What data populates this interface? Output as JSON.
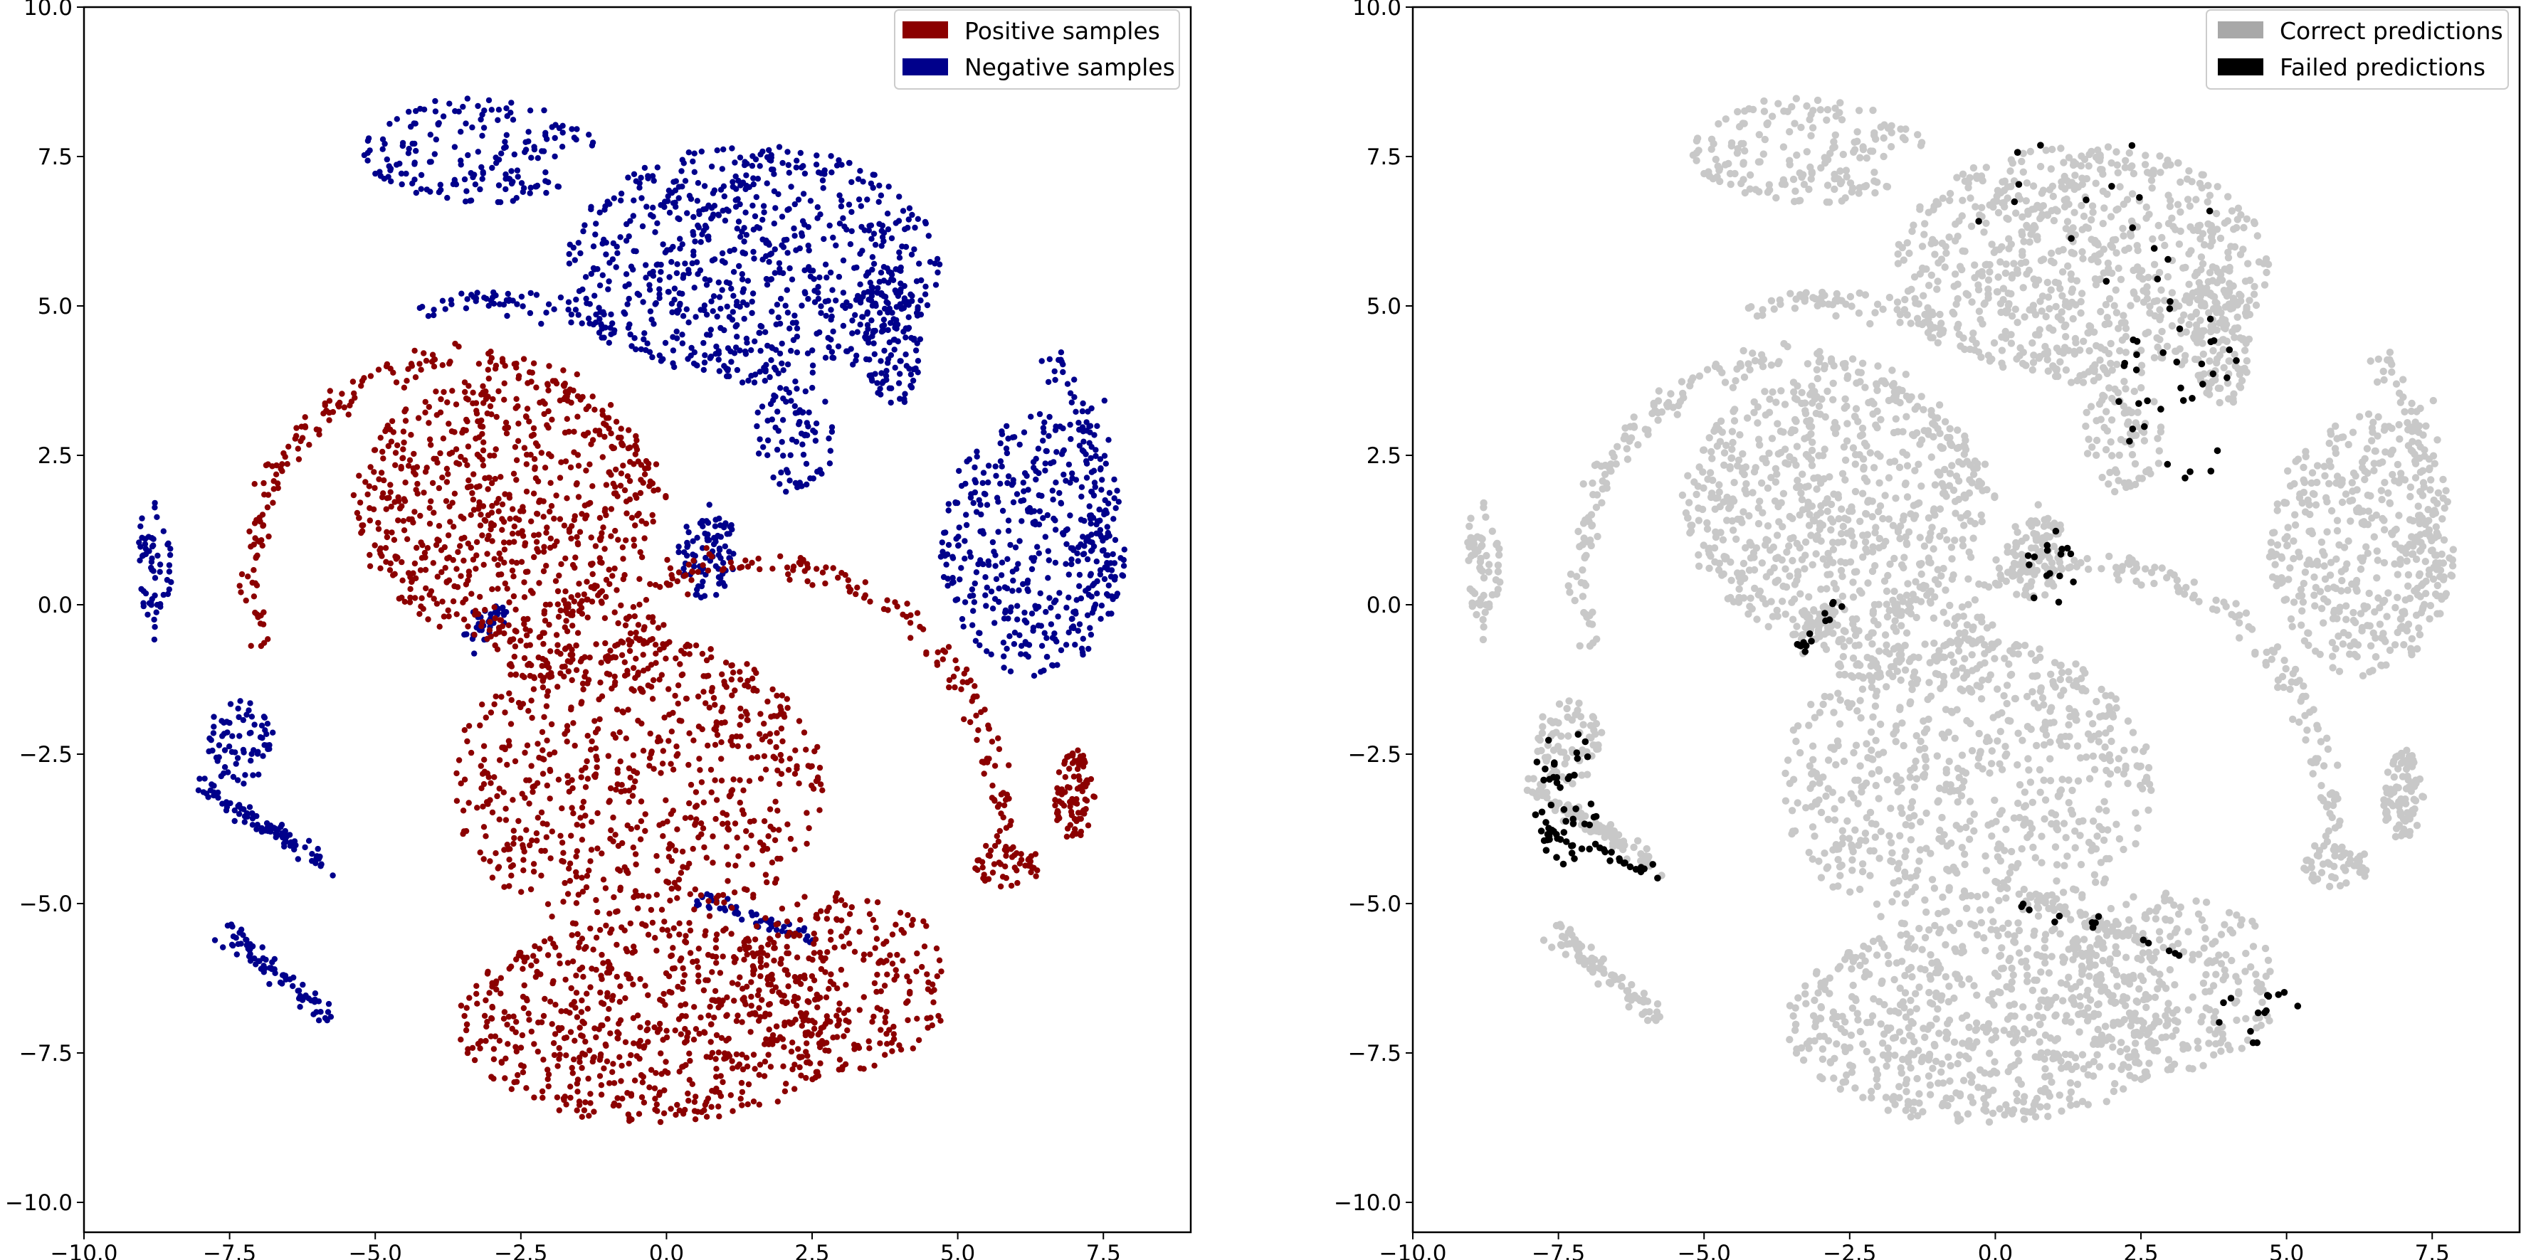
{
  "chart_data": [
    {
      "type": "scatter",
      "panel": "left",
      "xlim": [
        -10.0,
        9.0
      ],
      "ylim": [
        -10.5,
        10.0
      ],
      "xticks": [
        -10.0,
        -7.5,
        -5.0,
        -2.5,
        0.0,
        2.5,
        5.0,
        7.5
      ],
      "xtick_labels": [
        "−10.0",
        "−7.5",
        "−5.0",
        "−2.5",
        "0.0",
        "2.5",
        "5.0",
        "7.5"
      ],
      "yticks": [
        -10.0,
        -7.5,
        -5.0,
        -2.5,
        0.0,
        2.5,
        5.0,
        7.5,
        10.0
      ],
      "ytick_labels": [
        "−10.0",
        "−7.5",
        "−5.0",
        "−2.5",
        "0.0",
        "2.5",
        "5.0",
        "7.5",
        "10.0"
      ],
      "grid": false,
      "legend_position": "top-right",
      "series": [
        {
          "name": "Positive samples",
          "color": "#8b0000",
          "clusters": [
            {
              "cx": -2.8,
              "cy": 1.6,
              "rx": 2.6,
              "ry": 2.2,
              "n": 650
            },
            {
              "cx": -0.5,
              "cy": -3.0,
              "rx": 3.2,
              "ry": 2.5,
              "n": 700
            },
            {
              "cx": -0.2,
              "cy": -7.0,
              "rx": 3.4,
              "ry": 1.7,
              "n": 650
            },
            {
              "cx": 3.0,
              "cy": -6.3,
              "rx": 1.9,
              "ry": 1.5,
              "n": 250
            },
            {
              "cx": -1.5,
              "cy": -0.6,
              "rx": 1.6,
              "ry": 0.8,
              "n": 120
            },
            {
              "cx": 7.0,
              "cy": -3.2,
              "rx": 0.35,
              "ry": 0.8,
              "n": 90
            },
            {
              "cx": 5.9,
              "cy": -4.4,
              "rx": 0.6,
              "ry": 0.35,
              "n": 50
            }
          ],
          "arcs": [
            {
              "cx": -3.5,
              "cy": 0.5,
              "r": 3.6,
              "from": 20,
              "to": 200,
              "n": 220
            },
            {
              "cx": 1.5,
              "cy": -3.5,
              "r": 4.2,
              "from": -10,
              "to": 120,
              "n": 160
            }
          ]
        },
        {
          "name": "Negative samples",
          "color": "#00008b",
          "clusters": [
            {
              "cx": 1.5,
              "cy": 5.7,
              "rx": 3.2,
              "ry": 2.0,
              "n": 750
            },
            {
              "cx": -3.2,
              "cy": 7.6,
              "rx": 2.0,
              "ry": 0.9,
              "n": 180
            },
            {
              "cx": 6.3,
              "cy": 1.0,
              "rx": 1.6,
              "ry": 2.2,
              "n": 420
            },
            {
              "cx": 3.9,
              "cy": 4.5,
              "rx": 0.5,
              "ry": 1.2,
              "n": 120
            },
            {
              "cx": 0.7,
              "cy": 0.9,
              "rx": 0.5,
              "ry": 0.8,
              "n": 90
            },
            {
              "cx": 2.2,
              "cy": 2.8,
              "rx": 0.7,
              "ry": 1.0,
              "n": 80
            },
            {
              "cx": -8.8,
              "cy": 0.6,
              "rx": 0.3,
              "ry": 1.2,
              "n": 60
            },
            {
              "cx": -7.3,
              "cy": -2.3,
              "rx": 0.6,
              "ry": 0.7,
              "n": 70
            }
          ],
          "arcs": [
            {
              "cx": -3.0,
              "cy": 1.5,
              "r": 3.6,
              "from": 55,
              "to": 110,
              "n": 60
            },
            {
              "cx": 1.0,
              "cy": 1.0,
              "r": 6.5,
              "from": -10,
              "to": 30,
              "n": 80
            }
          ],
          "lines": [
            {
              "from": [
                -8.0,
                -3.0
              ],
              "to": [
                -5.8,
                -4.4
              ],
              "n": 90
            },
            {
              "from": [
                -7.5,
                -5.5
              ],
              "to": [
                -5.8,
                -6.9
              ],
              "n": 80
            },
            {
              "from": [
                -3.5,
                -0.7
              ],
              "to": [
                -2.7,
                0.0
              ],
              "n": 40
            },
            {
              "from": [
                0.5,
                -4.9
              ],
              "to": [
                2.5,
                -5.6
              ],
              "n": 50
            }
          ]
        }
      ]
    },
    {
      "type": "scatter",
      "panel": "right",
      "xlim": [
        -10.0,
        9.0
      ],
      "ylim": [
        -10.5,
        10.0
      ],
      "xticks": [
        -10.0,
        -7.5,
        -5.0,
        -2.5,
        0.0,
        2.5,
        5.0,
        7.5
      ],
      "xtick_labels": [
        "−10.0",
        "−7.5",
        "−5.0",
        "−2.5",
        "0.0",
        "2.5",
        "5.0",
        "7.5"
      ],
      "yticks": [
        -10.0,
        -7.5,
        -5.0,
        -2.5,
        0.0,
        2.5,
        5.0,
        7.5,
        10.0
      ],
      "ytick_labels": [
        "−10.0",
        "−7.5",
        "−5.0",
        "−2.5",
        "0.0",
        "2.5",
        "5.0",
        "7.5",
        "10.0"
      ],
      "grid": false,
      "legend_position": "top-right",
      "series": [
        {
          "name": "Correct predictions",
          "color": "#c8c8c8",
          "legend_color": "#a8a8a8",
          "same_layout_as": "left"
        },
        {
          "name": "Failed predictions",
          "color": "#000000",
          "clusters": [
            {
              "cx": -7.4,
              "cy": -3.2,
              "rx": 0.6,
              "ry": 1.2,
              "n": 45
            },
            {
              "cx": 3.1,
              "cy": 3.5,
              "rx": 1.2,
              "ry": 1.6,
              "n": 35
            },
            {
              "cx": 1.0,
              "cy": 0.6,
              "rx": 0.5,
              "ry": 0.7,
              "n": 16
            },
            {
              "cx": 1.5,
              "cy": 6.5,
              "rx": 2.2,
              "ry": 1.5,
              "n": 16
            },
            {
              "cx": 4.5,
              "cy": -6.8,
              "rx": 0.7,
              "ry": 0.6,
              "n": 14
            }
          ],
          "lines": [
            {
              "from": [
                -7.8,
                -3.8
              ],
              "to": [
                -5.8,
                -4.5
              ],
              "n": 30
            },
            {
              "from": [
                -3.5,
                -0.9
              ],
              "to": [
                -2.5,
                0.2
              ],
              "n": 14
            },
            {
              "from": [
                0.2,
                -4.9
              ],
              "to": [
                3.5,
                -6.0
              ],
              "n": 14
            }
          ]
        }
      ]
    }
  ]
}
